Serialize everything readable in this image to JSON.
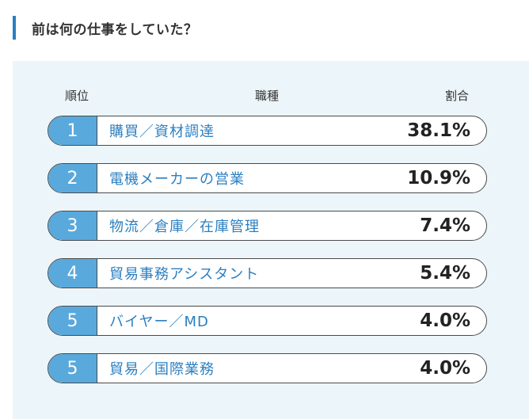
{
  "heading": "前は何の仕事をしていた？",
  "columns": {
    "rank": "順位",
    "job": "職種",
    "share": "割合"
  },
  "rows": [
    {
      "rank": "1",
      "job": "購買／資材調達",
      "share": "38.1%"
    },
    {
      "rank": "2",
      "job": "電機メーカーの営業",
      "share": "10.9%"
    },
    {
      "rank": "3",
      "job": "物流／倉庫／在庫管理",
      "share": "7.4%"
    },
    {
      "rank": "4",
      "job": "貿易事務アシスタント",
      "share": "5.4%"
    },
    {
      "rank": "5",
      "job": "バイヤー／MD",
      "share": "4.0%"
    },
    {
      "rank": "5",
      "job": "貿易／国際業務",
      "share": "4.0%"
    }
  ],
  "colors": {
    "accent": "#2b7fc0",
    "rank_badge": "#59a9dc",
    "panel_bg": "#ecf6fa"
  }
}
